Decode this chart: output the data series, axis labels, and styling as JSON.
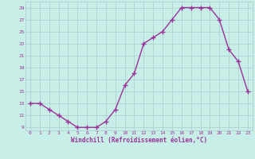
{
  "x": [
    0,
    1,
    2,
    3,
    4,
    5,
    6,
    7,
    8,
    9,
    10,
    11,
    12,
    13,
    14,
    15,
    16,
    17,
    18,
    19,
    20,
    21,
    22,
    23
  ],
  "y": [
    13,
    13,
    12,
    11,
    10,
    9,
    9,
    9,
    10,
    12,
    16,
    18,
    23,
    24,
    25,
    27,
    29,
    29,
    29,
    29,
    27,
    22,
    20,
    15
  ],
  "line_color": "#993399",
  "marker": "+",
  "bg_color": "#c8eee8",
  "grid_color": "#aacccc",
  "xlabel": "Windchill (Refroidissement éolien,°C)",
  "xlabel_color": "#993399",
  "tick_color": "#993399",
  "ylim": [
    8.5,
    30
  ],
  "yticks": [
    9,
    11,
    13,
    15,
    17,
    19,
    21,
    23,
    25,
    27,
    29
  ],
  "xticks": [
    0,
    1,
    2,
    3,
    4,
    5,
    6,
    7,
    8,
    9,
    10,
    11,
    12,
    13,
    14,
    15,
    16,
    17,
    18,
    19,
    20,
    21,
    22,
    23
  ],
  "line_width": 1.0,
  "marker_size": 4
}
